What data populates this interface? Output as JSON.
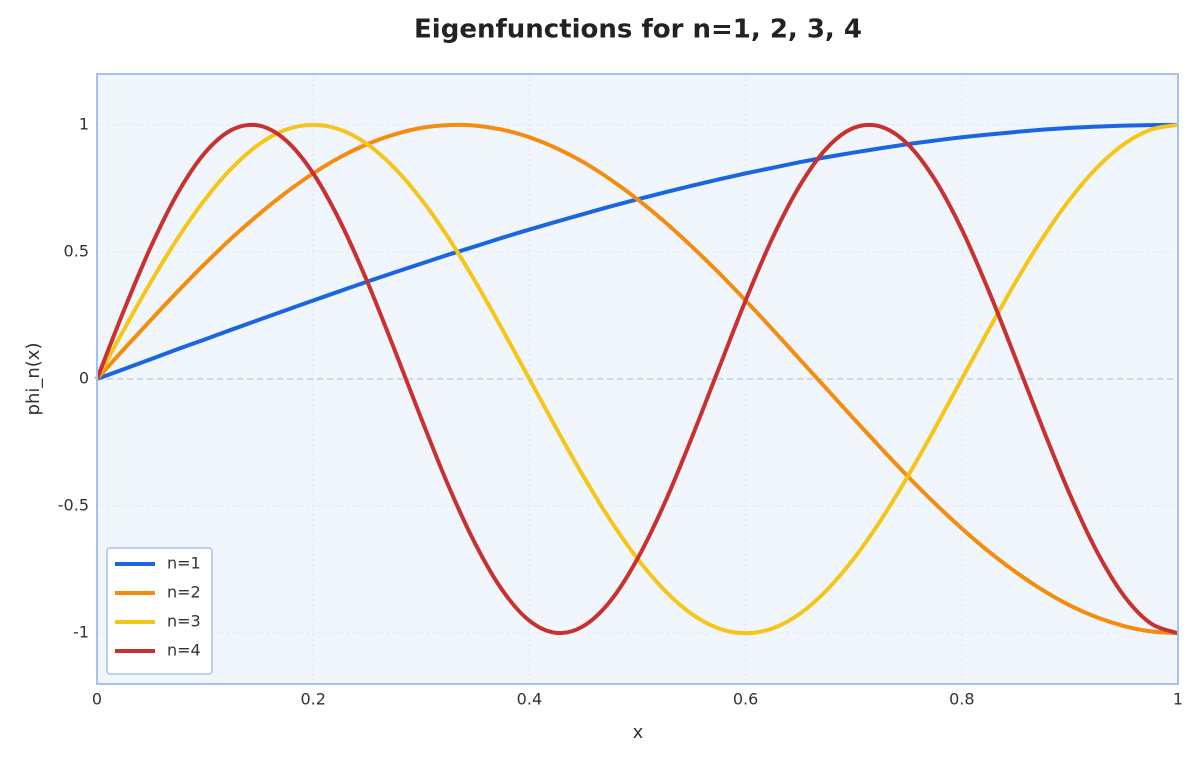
{
  "chart_data": {
    "type": "line",
    "title": "Eigenfunctions for n=1, 2, 3, 4",
    "x_label": "x",
    "y_label": "phi_n(x)",
    "x": [
      0,
      0.025,
      0.05,
      0.075,
      0.1,
      0.125,
      0.15,
      0.175,
      0.2,
      0.225,
      0.25,
      0.275,
      0.3,
      0.325,
      0.35,
      0.375,
      0.4,
      0.425,
      0.45,
      0.475,
      0.5,
      0.525,
      0.55,
      0.575,
      0.6,
      0.625,
      0.65,
      0.675,
      0.7,
      0.725,
      0.75,
      0.775,
      0.8,
      0.825,
      0.85,
      0.875,
      0.9,
      0.925,
      0.95,
      0.975,
      1
    ],
    "series": [
      {
        "name": "n=1",
        "color": "#1a66e0",
        "values": [
          0,
          0.039,
          0.078,
          0.118,
          0.156,
          0.195,
          0.233,
          0.271,
          0.309,
          0.346,
          0.383,
          0.419,
          0.454,
          0.489,
          0.522,
          0.556,
          0.588,
          0.619,
          0.649,
          0.679,
          0.707,
          0.734,
          0.76,
          0.785,
          0.809,
          0.831,
          0.853,
          0.873,
          0.891,
          0.908,
          0.924,
          0.938,
          0.951,
          0.962,
          0.972,
          0.981,
          0.988,
          0.993,
          0.997,
          0.999,
          1
        ]
      },
      {
        "name": "n=2",
        "color": "#f58c0f",
        "values": [
          0,
          0.118,
          0.233,
          0.346,
          0.454,
          0.556,
          0.649,
          0.734,
          0.809,
          0.873,
          0.924,
          0.962,
          0.988,
          0.999,
          0.997,
          0.981,
          0.951,
          0.908,
          0.853,
          0.785,
          0.707,
          0.619,
          0.522,
          0.419,
          0.309,
          0.195,
          0.078,
          -0.039,
          -0.156,
          -0.271,
          -0.383,
          -0.489,
          -0.588,
          -0.679,
          -0.76,
          -0.831,
          -0.891,
          -0.938,
          -0.972,
          -0.993,
          -1
        ]
      },
      {
        "name": "n=3",
        "color": "#f5c518",
        "values": [
          0,
          0.195,
          0.383,
          0.556,
          0.707,
          0.831,
          0.924,
          0.981,
          1,
          0.981,
          0.924,
          0.831,
          0.707,
          0.556,
          0.383,
          0.195,
          0,
          -0.195,
          -0.383,
          -0.556,
          -0.707,
          -0.831,
          -0.924,
          -0.981,
          -1,
          -0.981,
          -0.924,
          -0.831,
          -0.707,
          -0.556,
          -0.383,
          -0.195,
          0,
          0.195,
          0.383,
          0.556,
          0.707,
          0.831,
          0.924,
          0.981,
          1
        ]
      },
      {
        "name": "n=4",
        "color": "#c8312f",
        "values": [
          0,
          0.271,
          0.522,
          0.734,
          0.891,
          0.981,
          0.997,
          0.938,
          0.809,
          0.619,
          0.383,
          0.118,
          -0.156,
          -0.419,
          -0.649,
          -0.831,
          -0.951,
          -0.999,
          -0.972,
          -0.873,
          -0.707,
          -0.489,
          -0.233,
          0.039,
          0.309,
          0.556,
          0.76,
          0.908,
          0.988,
          0.993,
          0.924,
          0.785,
          0.588,
          0.346,
          0.078,
          -0.195,
          -0.454,
          -0.679,
          -0.853,
          -0.962,
          -1
        ]
      }
    ],
    "xlim": [
      0,
      1
    ],
    "ylim": [
      -1.2,
      1.2
    ],
    "xticks": [
      0,
      0.2,
      0.4,
      0.6,
      0.8,
      1
    ],
    "yticks": [
      -1,
      -0.5,
      0,
      0.5,
      1
    ],
    "hline": 0,
    "grid": true,
    "legend": "lower left"
  }
}
